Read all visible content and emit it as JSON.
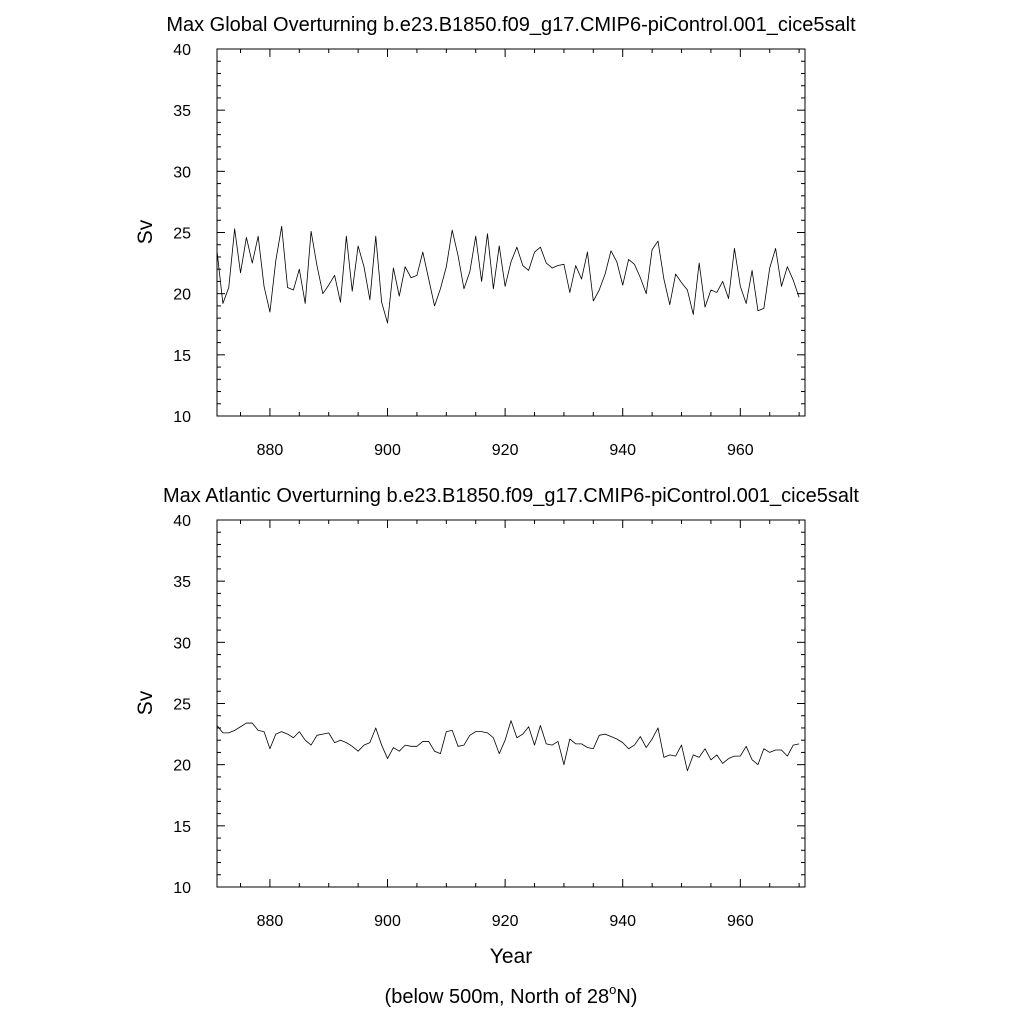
{
  "chart_data": [
    {
      "type": "line",
      "title": "Max Global Overturning b.e23.B1850.f09_g17.CMIP6-piControl.001_cice5salt",
      "xlabel": "",
      "ylabel": "Sv",
      "xlim": [
        871,
        971
      ],
      "ylim": [
        10,
        40
      ],
      "xticks": [
        880,
        900,
        920,
        940,
        960
      ],
      "yticks": [
        10,
        15,
        20,
        25,
        30,
        35,
        40
      ],
      "grid": false,
      "series": [
        {
          "x_start": 871,
          "x_step": 1,
          "values": [
            23.5,
            19.2,
            20.5,
            25.3,
            21.7,
            24.6,
            22.5,
            24.7,
            20.6,
            18.5,
            22.7,
            25.5,
            20.5,
            20.3,
            22.0,
            19.2,
            25.1,
            22.3,
            20.0,
            20.7,
            21.5,
            19.3,
            24.7,
            20.2,
            23.9,
            22.2,
            19.5,
            24.7,
            19.3,
            17.6,
            22.1,
            19.8,
            22.2,
            21.3,
            21.5,
            23.4,
            21.2,
            19.0,
            20.4,
            22.2,
            25.2,
            23.1,
            20.4,
            21.8,
            24.7,
            21.0,
            24.9,
            20.4,
            23.9,
            20.6,
            22.6,
            23.8,
            22.3,
            21.9,
            23.4,
            23.8,
            22.5,
            22.1,
            22.3,
            22.4,
            20.1,
            22.3,
            21.2,
            23.4,
            19.4,
            20.3,
            21.6,
            23.5,
            22.6,
            20.7,
            22.8,
            22.4,
            21.3,
            20.0,
            23.6,
            24.3,
            21.2,
            19.1,
            21.6,
            20.9,
            20.3,
            18.3,
            22.5,
            18.9,
            20.3,
            20.1,
            21.0,
            19.6,
            23.7,
            20.6,
            19.2,
            21.9,
            18.6,
            18.8,
            22.1,
            23.7,
            20.6,
            22.2,
            21.1,
            19.7
          ]
        }
      ]
    },
    {
      "type": "line",
      "title": "Max Atlantic Overturning b.e23.B1850.f09_g17.CMIP6-piControl.001_cice5salt",
      "xlabel": "Year",
      "ylabel": "Sv",
      "xlim": [
        871,
        971
      ],
      "ylim": [
        10,
        40
      ],
      "xticks": [
        880,
        900,
        920,
        940,
        960
      ],
      "yticks": [
        10,
        15,
        20,
        25,
        30,
        35,
        40
      ],
      "grid": false,
      "series": [
        {
          "x_start": 871,
          "x_step": 1,
          "values": [
            23.2,
            22.6,
            22.6,
            22.8,
            23.1,
            23.4,
            23.4,
            22.8,
            22.7,
            21.3,
            22.5,
            22.7,
            22.5,
            22.2,
            22.7,
            22.0,
            21.6,
            22.4,
            22.5,
            22.6,
            21.8,
            22.0,
            21.8,
            21.5,
            21.1,
            21.6,
            21.8,
            23.0,
            21.6,
            20.5,
            21.4,
            21.1,
            21.6,
            21.5,
            21.5,
            21.9,
            21.9,
            21.1,
            20.9,
            22.7,
            22.8,
            21.5,
            21.6,
            22.4,
            22.7,
            22.7,
            22.6,
            22.2,
            20.9,
            22.0,
            23.6,
            22.2,
            22.5,
            23.1,
            21.6,
            23.2,
            21.7,
            21.6,
            21.9,
            20.0,
            22.1,
            21.7,
            21.7,
            21.4,
            21.3,
            22.4,
            22.5,
            22.3,
            22.1,
            21.8,
            21.3,
            21.6,
            22.3,
            21.4,
            22.1,
            23.0,
            20.6,
            20.8,
            20.7,
            21.6,
            19.5,
            20.8,
            20.6,
            21.3,
            20.4,
            20.8,
            20.1,
            20.5,
            20.7,
            20.7,
            21.5,
            20.4,
            20.0,
            21.3,
            21.0,
            21.2,
            21.2,
            20.7,
            21.6,
            21.7
          ]
        }
      ]
    }
  ],
  "footnote": {
    "prefix": "(below 500m, North of 28",
    "superscript": "o",
    "suffix": "N)"
  }
}
